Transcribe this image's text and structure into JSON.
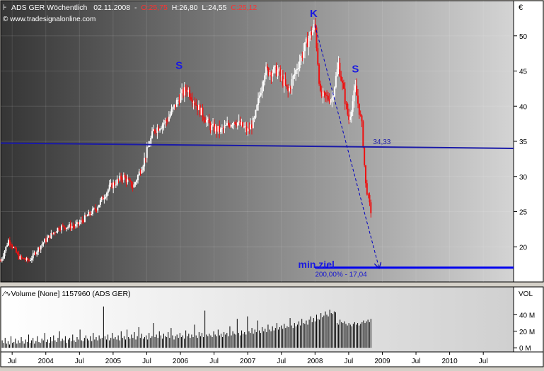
{
  "header": {
    "symbol_line": "ADS GER Wöchentlich",
    "date": "02.11.2008",
    "dash": "-",
    "open": "O:25,75",
    "high": "H:26,80",
    "low": "L:24,55",
    "close": "C:25,12",
    "source": "© www.tradesignalonline.com"
  },
  "currency_label": "€",
  "chart_data": [
    {
      "type": "candlestick",
      "title": "ADS GER Wöchentlich",
      "ylim": [
        15,
        55
      ],
      "y_ticks": [
        20,
        25,
        30,
        35,
        40,
        45,
        50
      ],
      "y_tick_labels": [
        "20",
        "25",
        "30",
        "35",
        "40",
        "45",
        "50"
      ],
      "x_range": [
        2003.33,
        2010.95
      ],
      "x_ticks": [
        {
          "t": 2003.5,
          "label": "Jul"
        },
        {
          "t": 2004.0,
          "label": "2004"
        },
        {
          "t": 2004.5,
          "label": "Jul"
        },
        {
          "t": 2005.0,
          "label": "2005"
        },
        {
          "t": 2005.5,
          "label": "Jul"
        },
        {
          "t": 2006.0,
          "label": "2006"
        },
        {
          "t": 2006.5,
          "label": "Jul"
        },
        {
          "t": 2007.0,
          "label": "2007"
        },
        {
          "t": 2007.5,
          "label": "Jul"
        },
        {
          "t": 2008.0,
          "label": "2008"
        },
        {
          "t": 2008.5,
          "label": "Jul"
        },
        {
          "t": 2009.0,
          "label": "2009"
        },
        {
          "t": 2009.5,
          "label": "Jul"
        },
        {
          "t": 2010.0,
          "label": "2010"
        },
        {
          "t": 2010.5,
          "label": "Jul"
        }
      ],
      "price_path": [
        [
          2003.33,
          18.0
        ],
        [
          2003.45,
          21.0
        ],
        [
          2003.6,
          18.5
        ],
        [
          2003.75,
          18.0
        ],
        [
          2003.95,
          20.5
        ],
        [
          2004.2,
          22.8
        ],
        [
          2004.45,
          23.0
        ],
        [
          2004.75,
          25.5
        ],
        [
          2004.95,
          28.5
        ],
        [
          2005.15,
          30.0
        ],
        [
          2005.3,
          28.5
        ],
        [
          2005.45,
          32.0
        ],
        [
          2005.6,
          36.5
        ],
        [
          2005.8,
          38.0
        ],
        [
          2006.0,
          41.5
        ],
        [
          2006.1,
          42.5
        ],
        [
          2006.25,
          40.0
        ],
        [
          2006.45,
          37.0
        ],
        [
          2006.6,
          36.5
        ],
        [
          2006.8,
          38.0
        ],
        [
          2007.0,
          36.5
        ],
        [
          2007.1,
          38.0
        ],
        [
          2007.25,
          45.0
        ],
        [
          2007.45,
          45.0
        ],
        [
          2007.6,
          42.0
        ],
        [
          2007.75,
          46.0
        ],
        [
          2007.92,
          50.0
        ],
        [
          2008.0,
          51.5
        ],
        [
          2008.08,
          41.5
        ],
        [
          2008.25,
          41.0
        ],
        [
          2008.35,
          46.0
        ],
        [
          2008.5,
          38.0
        ],
        [
          2008.6,
          42.5
        ],
        [
          2008.7,
          37.0
        ],
        [
          2008.75,
          29.0
        ],
        [
          2008.83,
          25.0
        ]
      ],
      "support_line": {
        "from": [
          2003.33,
          34.75
        ],
        "to": [
          2010.95,
          34.0
        ],
        "label": "34,33",
        "label_t": 2008.82
      },
      "target_line": {
        "t_start": 2008.0,
        "t_end": 2010.95,
        "value": 17.04,
        "label": "200,00% - 17,04"
      },
      "target_arrow": {
        "from": [
          2008.0,
          51.5
        ],
        "to": [
          2008.95,
          17.04
        ]
      },
      "annotations": [
        {
          "text": "S",
          "t": 2005.98,
          "v": 45.3
        },
        {
          "text": "K",
          "t": 2007.98,
          "v": 52.7
        },
        {
          "text": "S",
          "t": 2008.6,
          "v": 44.8
        },
        {
          "text": "min.ziel",
          "t": 2007.75,
          "v": 17.0
        }
      ],
      "colors": {
        "up": "#ffffff",
        "down": "#ee1111",
        "support": "#1a1aa8",
        "target": "#0000ee"
      }
    },
    {
      "type": "bar",
      "title": "Volume [None] 1157960 (ADS GER)",
      "ylabel": "VOL",
      "y_ticks": [
        {
          "v": 0,
          "label": "0 M"
        },
        {
          "v": 20,
          "label": "20 M"
        },
        {
          "v": 40,
          "label": "40 M"
        }
      ],
      "ylim": [
        -5,
        60
      ],
      "t_range": [
        2003.33,
        2008.83
      ],
      "values_million": [
        4,
        9,
        6,
        12,
        5,
        8,
        4,
        14,
        6,
        7,
        11,
        5,
        9,
        6,
        13,
        8,
        5,
        10,
        7,
        16,
        6,
        9,
        12,
        5,
        8,
        14,
        7,
        6,
        11,
        9,
        18,
        7,
        10,
        6,
        13,
        8,
        15,
        9,
        7,
        12,
        20,
        8,
        11,
        9,
        14,
        6,
        10,
        12,
        8,
        16,
        9,
        7,
        13,
        10,
        22,
        9,
        8,
        12,
        15,
        11,
        9,
        14,
        8,
        18,
        10,
        13,
        9,
        15,
        11,
        12,
        50,
        14,
        10,
        16,
        9,
        12,
        18,
        11,
        13,
        10,
        15,
        9,
        20,
        12,
        14,
        10,
        22,
        13,
        11,
        16,
        12,
        19,
        10,
        14,
        25,
        12,
        17,
        11,
        13,
        15,
        10,
        18,
        12,
        14,
        30,
        13,
        16,
        12,
        20,
        15,
        11,
        17,
        14,
        13,
        19,
        12,
        24,
        15,
        10,
        14,
        16,
        12,
        18,
        13,
        15,
        11,
        21,
        14,
        17,
        12,
        16,
        13,
        28,
        15,
        12,
        19,
        14,
        18,
        13,
        45,
        16,
        14,
        17,
        15,
        13,
        20,
        16,
        14,
        22,
        15,
        17,
        13,
        19,
        16,
        18,
        14,
        26,
        15,
        20,
        17,
        16,
        35,
        18,
        15,
        21,
        17,
        19,
        16,
        38,
        20,
        18,
        24,
        17,
        22,
        19,
        33,
        21,
        18,
        25,
        20,
        23,
        19,
        28,
        22,
        20,
        26,
        21,
        24,
        30,
        22,
        25,
        27,
        23,
        29,
        24,
        26,
        25,
        36,
        27,
        24,
        30,
        26,
        28,
        32,
        27,
        35,
        30,
        29,
        33,
        28,
        34,
        38,
        31,
        36,
        32,
        40,
        35,
        34,
        42,
        37,
        39,
        44,
        40,
        38,
        46,
        42,
        41,
        44,
        43,
        30,
        28,
        34,
        31,
        30,
        32,
        29,
        27,
        30,
        28,
        26,
        29,
        31,
        28,
        30,
        27,
        29,
        31,
        33,
        30,
        32,
        34,
        31,
        35
      ],
      "colors": {
        "bar": "#000000"
      }
    }
  ]
}
